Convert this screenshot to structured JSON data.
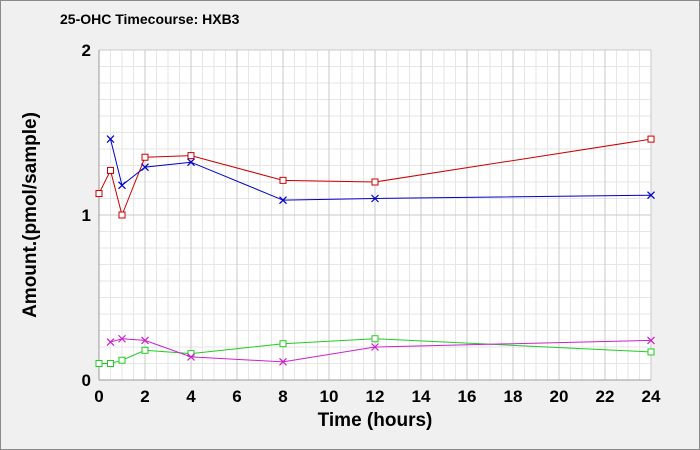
{
  "chart_data": {
    "type": "line",
    "title": "25-OHC Timecourse: HXB3",
    "xlabel": "Time (hours)",
    "ylabel": "Amount.(pmol/sample)",
    "xlim": [
      0,
      24
    ],
    "ylim": [
      0,
      2
    ],
    "x_ticks": [
      "0",
      "2",
      "4",
      "6",
      "8",
      "10",
      "12",
      "14",
      "16",
      "18",
      "20",
      "22",
      "24"
    ],
    "y_ticks": [
      "0",
      "1",
      "2"
    ],
    "grid": true,
    "series": [
      {
        "color": "#cc0000",
        "marker": "square",
        "points": [
          [
            0,
            1.13
          ],
          [
            0.5,
            1.27
          ],
          [
            1,
            1.0
          ],
          [
            2,
            1.35
          ],
          [
            4,
            1.36
          ],
          [
            8,
            1.21
          ],
          [
            12,
            1.2
          ],
          [
            24,
            1.46
          ]
        ]
      },
      {
        "color": "#0000cc",
        "marker": "x",
        "points": [
          [
            0.5,
            1.46
          ],
          [
            1,
            1.18
          ],
          [
            2,
            1.29
          ],
          [
            4,
            1.32
          ],
          [
            8,
            1.09
          ],
          [
            12,
            1.1
          ],
          [
            24,
            1.12
          ]
        ]
      },
      {
        "color": "#22cc22",
        "marker": "square",
        "points": [
          [
            0,
            0.1
          ],
          [
            0.5,
            0.1
          ],
          [
            1,
            0.12
          ],
          [
            2,
            0.18
          ],
          [
            4,
            0.16
          ],
          [
            8,
            0.22
          ],
          [
            12,
            0.25
          ],
          [
            24,
            0.17
          ]
        ]
      },
      {
        "color": "#cc22cc",
        "marker": "x",
        "points": [
          [
            0.5,
            0.23
          ],
          [
            1,
            0.25
          ],
          [
            2,
            0.24
          ],
          [
            4,
            0.14
          ],
          [
            8,
            0.11
          ],
          [
            12,
            0.2
          ],
          [
            24,
            0.24
          ]
        ]
      }
    ]
  }
}
